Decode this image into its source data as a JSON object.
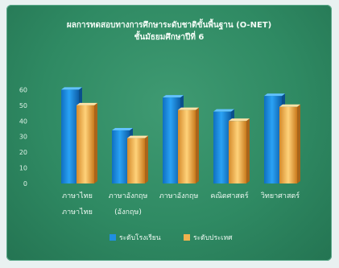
{
  "chart_data": {
    "type": "bar",
    "title_line1": "ผลการทดสอบทางการศึกษาระดับชาติขั้นพื้นฐาน (O-NET)",
    "title_line2": "ชั้นมัธยมศึกษาปีที่ 6",
    "categories": [
      [
        "ภาษาไทย",
        "ภาษาไทย"
      ],
      [
        "ภาษาอังกฤษ",
        "(อังกฤษ)"
      ],
      [
        "ภาษาอังกฤษ",
        ""
      ],
      [
        "คณิตศาสตร์",
        ""
      ],
      [
        "วิทยาศาสตร์",
        ""
      ]
    ],
    "series": [
      {
        "name": "ระดับโรงเรียน",
        "color": "#1f8fe0",
        "values": [
          60,
          34,
          55,
          46,
          56
        ]
      },
      {
        "name": "ระดับประเทศ",
        "color": "#f0b24e",
        "values": [
          50,
          29,
          47,
          40,
          49
        ]
      }
    ],
    "yticks": [
      "0",
      "10",
      "20",
      "30",
      "40",
      "50",
      "60"
    ],
    "ylim": [
      0,
      70
    ],
    "grid": false,
    "legend": "bottom"
  }
}
